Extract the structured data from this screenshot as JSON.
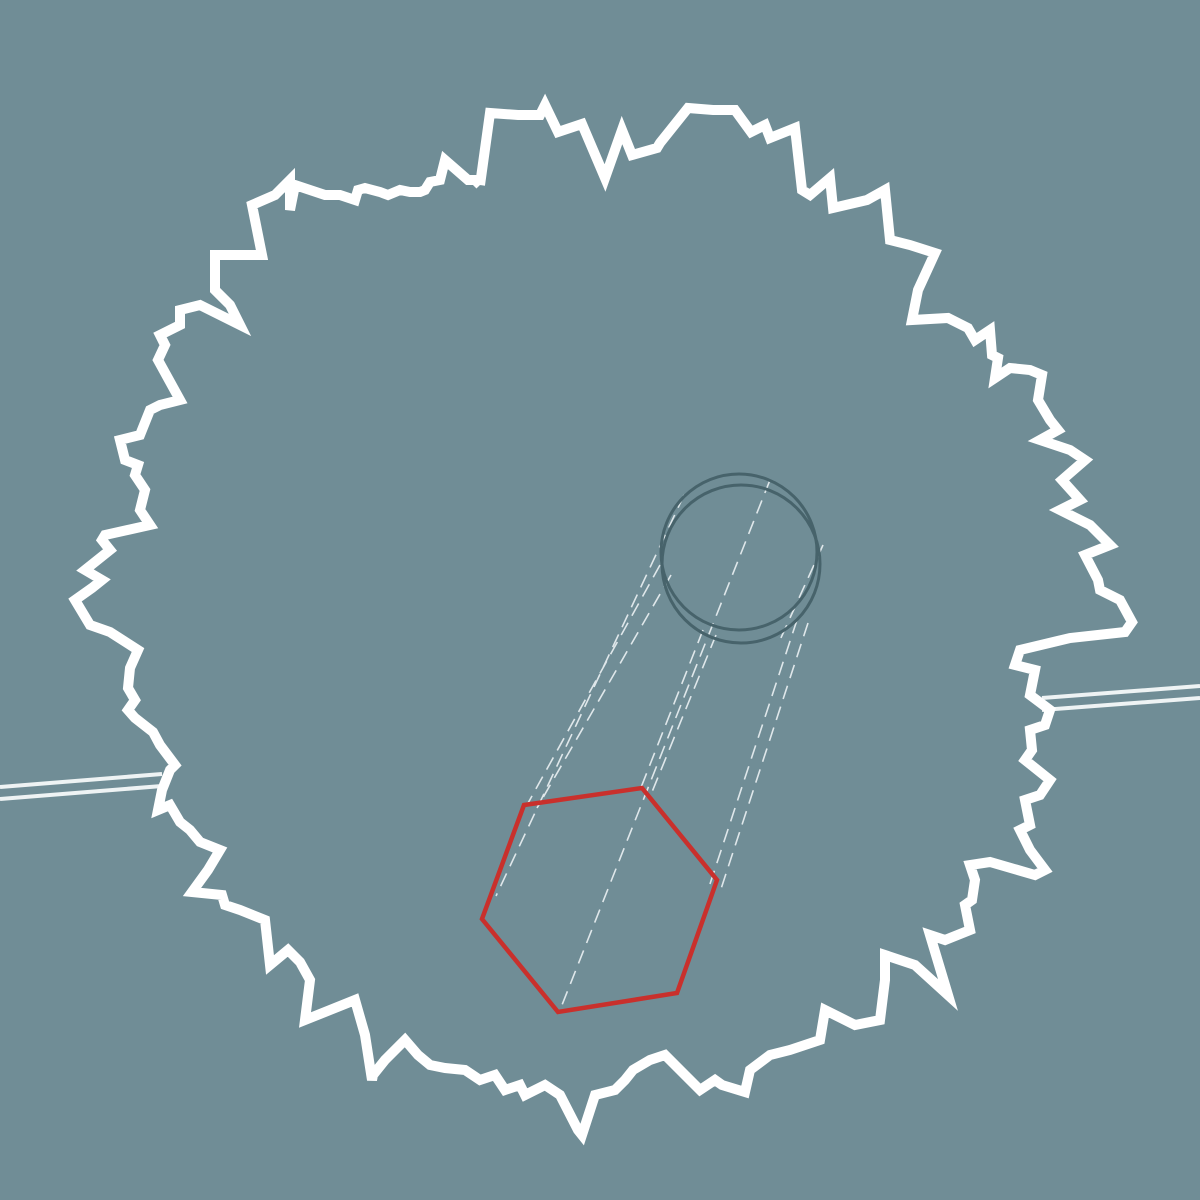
{
  "colors": {
    "background": "#708d96",
    "outline": "#ffffff",
    "track_line": "#eef3f4",
    "ring": "#47636b",
    "guide_dash": "#dfe7ea",
    "hexagon": "#c9302c"
  },
  "elements": {
    "jagged_outline": "jagged-star-outline",
    "left_track": "double-line-left",
    "right_track": "double-line-right",
    "source_ring": "double-ring",
    "guides": "dashed-projection-lines",
    "target_shape": "red-hexagon"
  }
}
